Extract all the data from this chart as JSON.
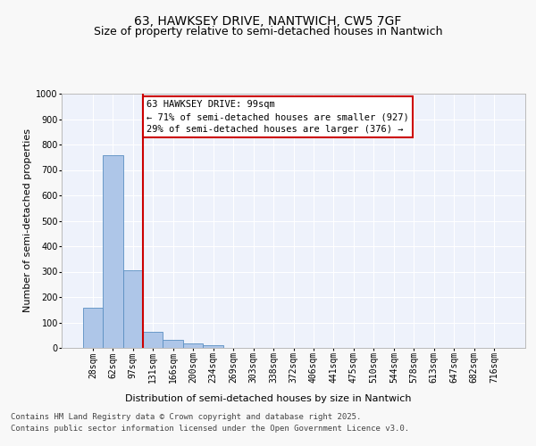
{
  "title_line1": "63, HAWKSEY DRIVE, NANTWICH, CW5 7GF",
  "title_line2": "Size of property relative to semi-detached houses in Nantwich",
  "xlabel": "Distribution of semi-detached houses by size in Nantwich",
  "ylabel": "Number of semi-detached properties",
  "categories": [
    "28sqm",
    "62sqm",
    "97sqm",
    "131sqm",
    "166sqm",
    "200sqm",
    "234sqm",
    "269sqm",
    "303sqm",
    "338sqm",
    "372sqm",
    "406sqm",
    "441sqm",
    "475sqm",
    "510sqm",
    "544sqm",
    "578sqm",
    "613sqm",
    "647sqm",
    "682sqm",
    "716sqm"
  ],
  "values": [
    157,
    757,
    307,
    62,
    30,
    17,
    9,
    0,
    0,
    0,
    0,
    0,
    0,
    0,
    0,
    0,
    0,
    0,
    0,
    0,
    0
  ],
  "bar_color": "#aec6e8",
  "bar_edge_color": "#5a8fc2",
  "highlight_color": "#cc0000",
  "annotation_title": "63 HAWKSEY DRIVE: 99sqm",
  "annotation_line1": "← 71% of semi-detached houses are smaller (927)",
  "annotation_line2": "29% of semi-detached houses are larger (376) →",
  "annotation_box_color": "#cc0000",
  "ylim": [
    0,
    1000
  ],
  "yticks": [
    0,
    100,
    200,
    300,
    400,
    500,
    600,
    700,
    800,
    900,
    1000
  ],
  "footnote1": "Contains HM Land Registry data © Crown copyright and database right 2025.",
  "footnote2": "Contains public sector information licensed under the Open Government Licence v3.0.",
  "bg_color": "#eef2fb",
  "grid_color": "#ffffff",
  "fig_bg_color": "#f8f8f8",
  "title_fontsize": 10,
  "subtitle_fontsize": 9,
  "axis_label_fontsize": 8,
  "tick_fontsize": 7,
  "annotation_fontsize": 7.5,
  "footnote_fontsize": 6.5
}
